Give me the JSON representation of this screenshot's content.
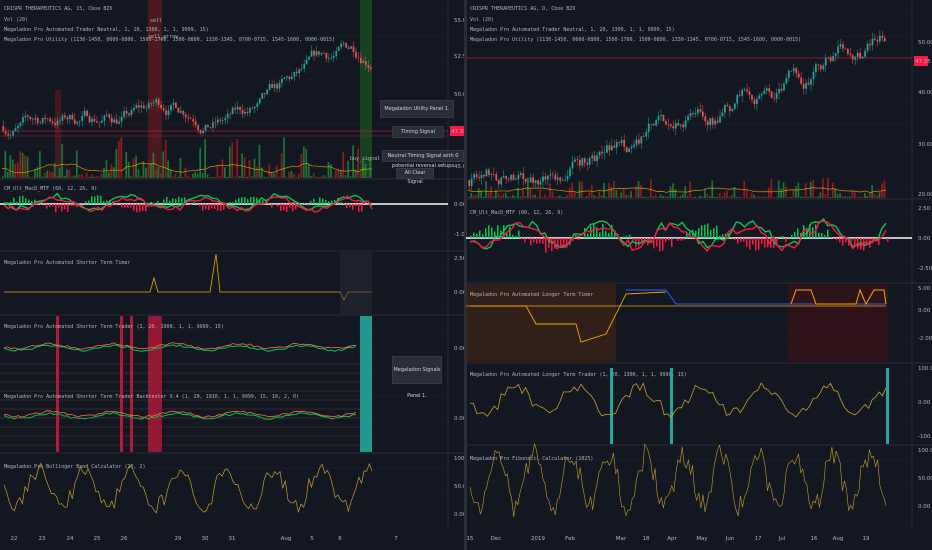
{
  "left": {
    "title": "CRISPR THERAPEUTICS AG, 15, Cboe BZX",
    "lines": [
      "Vol (20)",
      "Megaladon Pro Automated Trader Neutral, 1, 20, 1300, 1, 1, 9999, 15)",
      "Megaladon Pro Utility (1130-1450, 0600-0800, 1500-1700, 1500-0800, 1330-1345, 0700-0715, 1545-1600, 0000-0015)"
    ],
    "price_axis": [
      "55.00",
      "52.50",
      "50.00",
      "47.50",
      "45.00"
    ],
    "price_tag": "47.35",
    "cmi_title": "CM_Ult_MacD_MTF (60, 12, 26, 9)",
    "cmi_axis": [
      "0.00",
      "-1.00"
    ],
    "timer_title": "Megaladon Pro Automated Shorter Term Timer",
    "timer_axis": [
      "2.50",
      "0.00"
    ],
    "trader_title": "Megaladon Pro Automated Shorter Term Trader (1, 20, 1900, 1, 1, 9999, 15)",
    "trader_axis": [
      "0.00"
    ],
    "backtester_title": "Megaladon Pro Automated Shorter Term Trader Backtester V.4 (1, 20, 1910, 1, 1, 9999, 15, 10, 2, 0)",
    "backtester_axis": [
      "0.00"
    ],
    "bollinger_title": "Megaladon Pro Bollinger Band Calculator (20, 2)",
    "bollinger_axis": [
      "100.00",
      "50.00",
      "0.00"
    ],
    "dates": [
      "22",
      "23",
      "24",
      "25",
      "26",
      "29",
      "30",
      "31",
      "Aug",
      "5",
      "6",
      "7"
    ],
    "popup_utility": "Megaladon Utility Panel 1.",
    "popup_timing": "Timing Signal",
    "popup_neutral": "Neutral Timing Signal with 0 potential reversal setups",
    "popup_all_clear": "All Clear Signal",
    "popup_signals": "Megaladon Signals Panel 1.",
    "tag_sell": "sell",
    "tag_sell_arrow": "sell_arrow",
    "tag_buy": "buy_signal"
  },
  "right": {
    "title": "CRISPR THERAPEUTICS AG, D, Cboe BZX",
    "lines": [
      "Vol (20)",
      "Megaladon Pro Automated Trader Neutral, 1, 20, 1300, 1, 1, 9999, 15)",
      "Megaladon Pro Utility (1130-1450, 0600-0800, 1500-1700, 1500-0800, 1330-1345, 0700-0715, 1545-1600, 0000-0015)"
    ],
    "price_axis": [
      "50.00",
      "40.00",
      "30.00",
      "20.00"
    ],
    "price_tag": "47.35",
    "cmi_title": "CM_Ult_MacD_MTF (60, 12, 26, 9)",
    "cmi_axis": [
      "2.50",
      "0.00",
      "-2.50"
    ],
    "timer_title": "Megaladon Pro Automated Longer Term Timer",
    "timer_axis": [
      "5.00",
      "0.00",
      "-2.00"
    ],
    "trader_title": "Megaladon Pro Automated Longer Term Trader (1, 20, 1300, 1, 1, 9999, 15)",
    "trader_axis": [
      "100.00",
      "0.00",
      "-100.00"
    ],
    "fib_title": "Megaladon Pro Fibonacci Calculator (1025)",
    "fib_axis": [
      "100.00",
      "50.00",
      "0.00"
    ],
    "dates": [
      "15",
      "Dec",
      "2019",
      "Feb",
      "Mar",
      "18",
      "Apr",
      "May",
      "Jun",
      "17",
      "Jul",
      "16",
      "Aug",
      "19"
    ]
  },
  "colors": {
    "bg": "#131722",
    "up": "#26a69a",
    "down": "#ef5350",
    "green": "#00c853",
    "red": "#ff1744",
    "orange": "#f7a600",
    "blue": "#2962ff",
    "white": "#ffffff"
  }
}
